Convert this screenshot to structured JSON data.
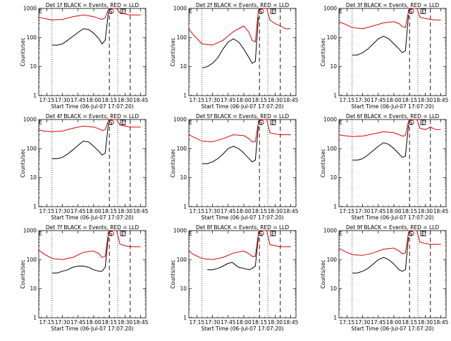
{
  "xlabel": "Start Time (06-Jul-07 17:07:20)",
  "ylabel": "Counts/sec",
  "x_ticks": [
    "17:15",
    "17:30",
    "17:45",
    "18:00",
    "18:15",
    "18:30",
    "18:45"
  ],
  "y_ticks": [
    "1",
    "10",
    "100",
    "1000"
  ],
  "markers": [
    "E",
    "S"
  ],
  "colors": {
    "events": "#000000",
    "lld": "#e00000"
  },
  "panels": [
    {
      "title": "Det 1f BLACK = Events, RED = LLD"
    },
    {
      "title": "Det 2f BLACK = Events, RED = LLD"
    },
    {
      "title": "Det 3f BLACK = Events, RED = LLD"
    },
    {
      "title": "Det 4f BLACK = Events, RED = LLD"
    },
    {
      "title": "Det 5f BLACK = Events, RED = LLD"
    },
    {
      "title": "Det 6f BLACK = Events, RED = LLD"
    },
    {
      "title": "Det 7f BLACK = Events, RED = LLD"
    },
    {
      "title": "Det 8f BLACK = Events, RED = LLD"
    },
    {
      "title": "Det 9f BLACK = Events, RED = LLD"
    }
  ],
  "chart_data": [
    {
      "type": "line",
      "title": "Det 1f BLACK = Events, RED = LLD",
      "xlabel": "Start Time (06-Jul-07 17:07:20)",
      "ylabel": "Counts/sec",
      "ylim": [
        1,
        1000
      ],
      "yscale": "log",
      "series": [
        {
          "name": "BLACK = Events",
          "x": [
            "17:20",
            "17:25",
            "17:30",
            "17:35",
            "17:40",
            "17:45",
            "17:50",
            "17:55",
            "18:00",
            "18:05",
            "18:08",
            "18:11",
            "18:14"
          ],
          "values": [
            55,
            55,
            60,
            80,
            110,
            150,
            200,
            190,
            140,
            90,
            60,
            80,
            700
          ]
        },
        {
          "name": "RED = LLD",
          "x": [
            "17:07",
            "17:12",
            "17:20",
            "17:30",
            "17:40",
            "17:50",
            "18:00",
            "18:05",
            "18:08",
            "18:11",
            "18:14",
            "18:16",
            "18:20",
            "18:22",
            "18:25",
            "18:30",
            "18:35",
            "18:40",
            "18:45"
          ],
          "values": [
            500,
            450,
            400,
            420,
            520,
            600,
            520,
            450,
            420,
            480,
            900,
            1000,
            1000,
            1000,
            700,
            650,
            600,
            600,
            600
          ]
        }
      ]
    },
    {
      "type": "line",
      "title": "Det 2f BLACK = Events, RED = LLD",
      "xlabel": "Start Time (06-Jul-07 17:07:20)",
      "ylabel": "Counts/sec",
      "ylim": [
        1,
        1000
      ],
      "yscale": "log",
      "series": [
        {
          "name": "BLACK = Events",
          "x": [
            "17:20",
            "17:25",
            "17:30",
            "17:35",
            "17:40",
            "17:45",
            "17:50",
            "17:55",
            "18:00",
            "18:05",
            "18:08",
            "18:11",
            "18:14"
          ],
          "values": [
            9,
            10,
            13,
            20,
            40,
            70,
            90,
            70,
            40,
            20,
            13,
            15,
            500
          ]
        },
        {
          "name": "RED = LLD",
          "x": [
            "17:07",
            "17:12",
            "17:20",
            "17:30",
            "17:40",
            "17:50",
            "18:00",
            "18:05",
            "18:08",
            "18:11",
            "18:14",
            "18:16",
            "18:20",
            "18:22",
            "18:25",
            "18:30",
            "18:35",
            "18:40",
            "18:45"
          ],
          "values": [
            200,
            120,
            60,
            55,
            80,
            160,
            250,
            150,
            80,
            70,
            900,
            1000,
            1000,
            1000,
            400,
            300,
            250,
            200,
            200
          ]
        }
      ]
    },
    {
      "type": "line",
      "title": "Det 3f BLACK = Events, RED = LLD",
      "xlabel": "Start Time (06-Jul-07 17:07:20)",
      "ylabel": "Counts/sec",
      "ylim": [
        1,
        1000
      ],
      "yscale": "log",
      "series": [
        {
          "name": "BLACK = Events",
          "x": [
            "17:20",
            "17:25",
            "17:30",
            "17:35",
            "17:40",
            "17:45",
            "17:50",
            "17:55",
            "18:00",
            "18:05",
            "18:08",
            "18:11",
            "18:14"
          ],
          "values": [
            25,
            25,
            30,
            40,
            60,
            90,
            110,
            90,
            60,
            40,
            30,
            35,
            600
          ]
        },
        {
          "name": "RED = LLD",
          "x": [
            "17:07",
            "17:12",
            "17:20",
            "17:30",
            "17:40",
            "17:50",
            "18:00",
            "18:05",
            "18:08",
            "18:11",
            "18:14",
            "18:16",
            "18:20",
            "18:22",
            "18:25",
            "18:30",
            "18:35",
            "18:40",
            "18:45"
          ],
          "values": [
            350,
            300,
            220,
            200,
            250,
            320,
            350,
            300,
            240,
            220,
            800,
            1000,
            1000,
            1000,
            500,
            450,
            420,
            400,
            400
          ]
        }
      ]
    },
    {
      "type": "line",
      "title": "Det 4f BLACK = Events, RED = LLD",
      "xlabel": "Start Time (06-Jul-07 17:07:20)",
      "ylabel": "Counts/sec",
      "ylim": [
        1,
        1000
      ],
      "yscale": "log",
      "series": [
        {
          "name": "BLACK = Events",
          "x": [
            "17:20",
            "17:25",
            "17:30",
            "17:35",
            "17:40",
            "17:45",
            "17:50",
            "17:55",
            "18:00",
            "18:05",
            "18:08",
            "18:11",
            "18:14"
          ],
          "values": [
            45,
            45,
            50,
            65,
            90,
            130,
            180,
            170,
            120,
            80,
            60,
            70,
            700
          ]
        },
        {
          "name": "RED = LLD",
          "x": [
            "17:07",
            "17:12",
            "17:20",
            "17:30",
            "17:40",
            "17:50",
            "18:00",
            "18:05",
            "18:08",
            "18:11",
            "18:14",
            "18:16",
            "18:20",
            "18:22",
            "18:25",
            "18:30",
            "18:35",
            "18:40",
            "18:45"
          ],
          "values": [
            450,
            400,
            380,
            400,
            500,
            600,
            550,
            480,
            420,
            450,
            900,
            1000,
            1000,
            1000,
            650,
            600,
            550,
            550,
            550
          ]
        }
      ]
    },
    {
      "type": "line",
      "title": "Det 5f BLACK = Events, RED = LLD",
      "xlabel": "Start Time (06-Jul-07 17:07:20)",
      "ylabel": "Counts/sec",
      "ylim": [
        1,
        1000
      ],
      "yscale": "log",
      "series": [
        {
          "name": "BLACK = Events",
          "x": [
            "17:20",
            "17:25",
            "17:30",
            "17:35",
            "17:40",
            "17:45",
            "17:50",
            "17:55",
            "18:00",
            "18:05",
            "18:08",
            "18:11",
            "18:14"
          ],
          "values": [
            30,
            30,
            35,
            45,
            65,
            100,
            120,
            100,
            70,
            45,
            35,
            40,
            600
          ]
        },
        {
          "name": "RED = LLD",
          "x": [
            "17:07",
            "17:12",
            "17:20",
            "17:30",
            "17:40",
            "17:50",
            "18:00",
            "18:05",
            "18:08",
            "18:11",
            "18:14",
            "18:16",
            "18:20",
            "18:22",
            "18:25",
            "18:30",
            "18:35",
            "18:40",
            "18:45"
          ],
          "values": [
            300,
            250,
            180,
            170,
            220,
            300,
            280,
            220,
            170,
            170,
            800,
            1000,
            1000,
            1000,
            350,
            320,
            300,
            300,
            300
          ]
        }
      ]
    },
    {
      "type": "line",
      "title": "Det 6f BLACK = Events, RED = LLD",
      "xlabel": "Start Time (06-Jul-07 17:07:20)",
      "ylabel": "Counts/sec",
      "ylim": [
        1,
        1000
      ],
      "yscale": "log",
      "series": [
        {
          "name": "BLACK = Events",
          "x": [
            "17:20",
            "17:25",
            "17:30",
            "17:35",
            "17:40",
            "17:45",
            "17:50",
            "17:55",
            "18:00",
            "18:05",
            "18:08",
            "18:11",
            "18:14"
          ],
          "values": [
            40,
            40,
            45,
            60,
            85,
            120,
            160,
            140,
            100,
            65,
            50,
            55,
            650
          ]
        },
        {
          "name": "RED = LLD",
          "x": [
            "17:07",
            "17:12",
            "17:20",
            "17:30",
            "17:40",
            "17:50",
            "18:00",
            "18:05",
            "18:08",
            "18:11",
            "18:14",
            "18:16",
            "18:20",
            "18:22",
            "18:25",
            "18:30",
            "18:35",
            "18:40",
            "18:45"
          ],
          "values": [
            300,
            280,
            260,
            270,
            320,
            380,
            350,
            300,
            270,
            280,
            850,
            1000,
            1000,
            1000,
            500,
            450,
            550,
            450,
            450
          ]
        }
      ]
    },
    {
      "type": "line",
      "title": "Det 7f BLACK = Events, RED = LLD",
      "xlabel": "Start Time (06-Jul-07 17:07:20)",
      "ylabel": "Counts/sec",
      "ylim": [
        1,
        1000
      ],
      "yscale": "log",
      "series": [
        {
          "name": "BLACK = Events",
          "x": [
            "17:20",
            "17:25",
            "17:30",
            "17:35",
            "17:40",
            "17:45",
            "17:50",
            "17:55",
            "18:00",
            "18:05",
            "18:08",
            "18:11",
            "18:14"
          ],
          "values": [
            35,
            35,
            40,
            45,
            55,
            60,
            60,
            55,
            45,
            40,
            40,
            55,
            600
          ]
        },
        {
          "name": "RED = LLD",
          "x": [
            "17:07",
            "17:12",
            "17:20",
            "17:30",
            "17:40",
            "17:50",
            "18:00",
            "18:05",
            "18:08",
            "18:11",
            "18:14",
            "18:16",
            "18:20",
            "18:22",
            "18:25",
            "18:30",
            "18:35",
            "18:40",
            "18:45"
          ],
          "values": [
            220,
            160,
            110,
            100,
            120,
            180,
            200,
            160,
            120,
            130,
            800,
            1000,
            1000,
            1000,
            350,
            300,
            280,
            280,
            280
          ]
        }
      ]
    },
    {
      "type": "line",
      "title": "Det 8f BLACK = Events, RED = LLD",
      "xlabel": "Start Time (06-Jul-07 17:07:20)",
      "ylabel": "Counts/sec",
      "ylim": [
        1,
        1000
      ],
      "yscale": "log",
      "series": [
        {
          "name": "BLACK = Events",
          "x": [
            "17:25",
            "17:30",
            "17:35",
            "17:40",
            "17:45",
            "17:49",
            "17:55",
            "18:00",
            "18:05",
            "18:08",
            "18:11",
            "18:14"
          ],
          "values": [
            45,
            45,
            50,
            60,
            75,
            80,
            55,
            50,
            45,
            50,
            60,
            600
          ]
        },
        {
          "name": "RED = LLD",
          "x": [
            "17:07",
            "17:12",
            "17:20",
            "17:30",
            "17:40",
            "17:50",
            "18:00",
            "18:05",
            "18:08",
            "18:11",
            "18:14",
            "18:16",
            "18:20",
            "18:22",
            "18:25",
            "18:30",
            "18:35",
            "18:40",
            "18:45"
          ],
          "values": [
            200,
            150,
            110,
            100,
            120,
            170,
            200,
            160,
            130,
            130,
            800,
            1000,
            1000,
            1000,
            330,
            300,
            280,
            280,
            280
          ]
        }
      ]
    },
    {
      "type": "line",
      "title": "Det 9f BLACK = Events, RED = LLD",
      "xlabel": "Start Time (06-Jul-07 17:07:20)",
      "ylabel": "Counts/sec",
      "ylim": [
        1,
        1000
      ],
      "yscale": "log",
      "series": [
        {
          "name": "BLACK = Events",
          "x": [
            "17:20",
            "17:25",
            "17:30",
            "17:35",
            "17:40",
            "17:45",
            "17:50",
            "17:55",
            "18:00",
            "18:05",
            "18:08",
            "18:11",
            "18:14"
          ],
          "values": [
            35,
            35,
            40,
            50,
            70,
            100,
            120,
            100,
            70,
            45,
            40,
            45,
            600
          ]
        },
        {
          "name": "RED = LLD",
          "x": [
            "17:07",
            "17:12",
            "17:20",
            "17:30",
            "17:40",
            "17:50",
            "18:00",
            "18:05",
            "18:08",
            "18:11",
            "18:14",
            "18:16",
            "18:20",
            "18:22",
            "18:25",
            "18:30",
            "18:35",
            "18:40",
            "18:45"
          ],
          "values": [
            250,
            200,
            150,
            140,
            170,
            230,
            250,
            200,
            160,
            170,
            850,
            1000,
            1000,
            1000,
            400,
            360,
            340,
            340,
            340
          ]
        }
      ]
    }
  ]
}
